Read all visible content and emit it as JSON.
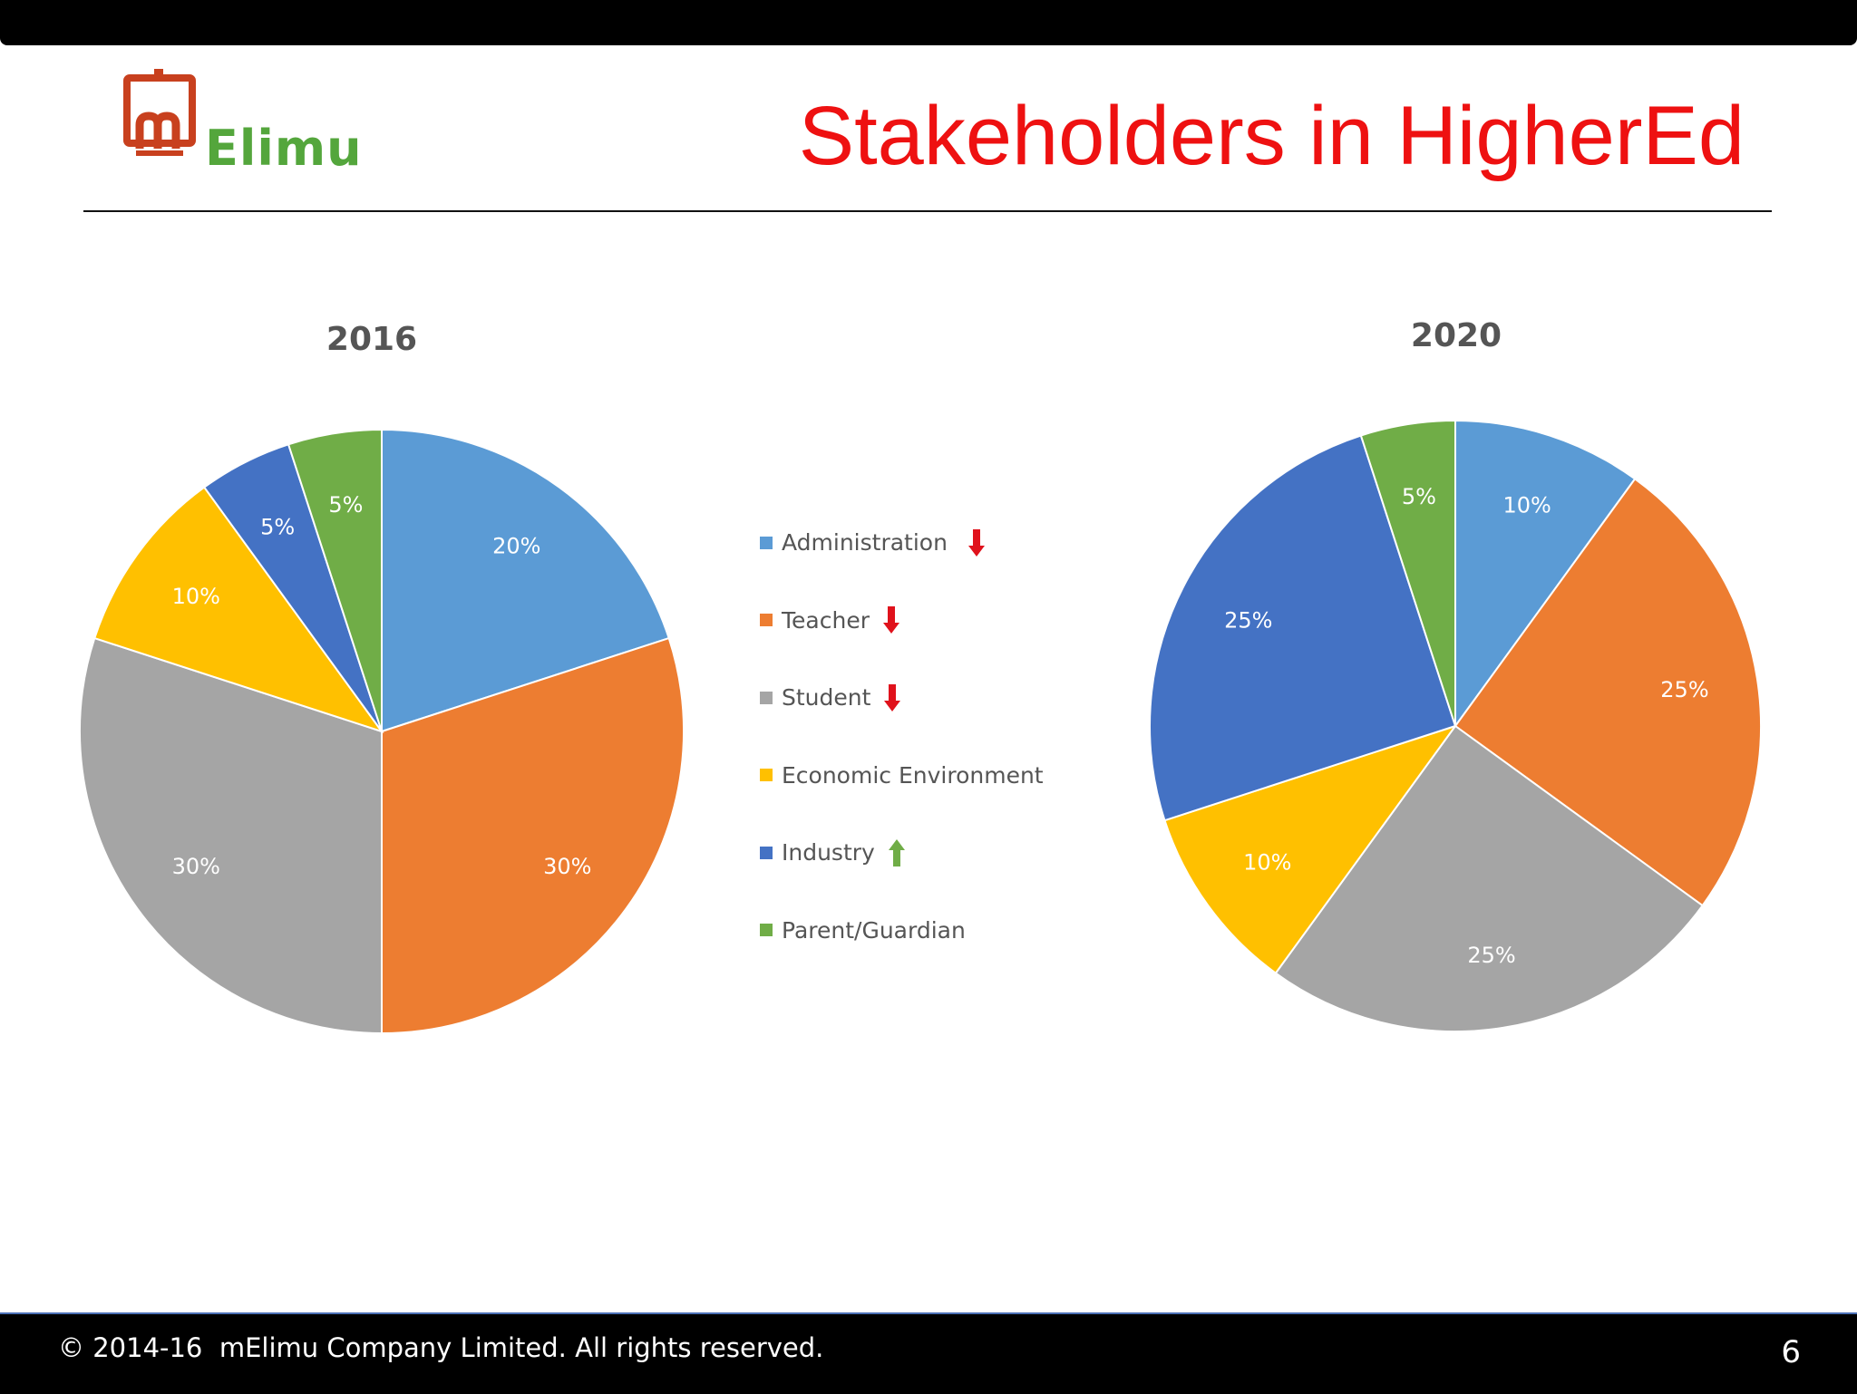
{
  "slide": {
    "logo_text": "Elimu",
    "title": "Stakeholders in HigherEd",
    "footer_text": "© 2014-16  mElimu Company Limited. All rights reserved.",
    "page_number": "6"
  },
  "colors": {
    "Administration": "#5b9bd5",
    "Teacher": "#ed7d31",
    "Student": "#a5a5a5",
    "Economic Environment": "#ffc000",
    "Industry": "#4472c4",
    "Parent/Guardian": "#70ad47",
    "title_red": "#ee1111",
    "arrow_down": "#e0121c",
    "arrow_up": "#70ad47"
  },
  "legend": [
    {
      "label": "Administration",
      "trend": "down"
    },
    {
      "label": "Teacher",
      "trend": "down"
    },
    {
      "label": "Student",
      "trend": "down"
    },
    {
      "label": "Economic Environment",
      "trend": "none"
    },
    {
      "label": "Industry",
      "trend": "up"
    },
    {
      "label": "Parent/Guardian",
      "trend": "none"
    }
  ],
  "chart_data": [
    {
      "type": "pie",
      "title": "2016",
      "categories": [
        "Administration",
        "Teacher",
        "Student",
        "Economic Environment",
        "Industry",
        "Parent/Guardian"
      ],
      "values": [
        20,
        30,
        30,
        10,
        5,
        5
      ],
      "labels": [
        "20%",
        "30%",
        "30%",
        "10%",
        "5%",
        "5%"
      ],
      "legend": "between charts"
    },
    {
      "type": "pie",
      "title": "2020",
      "categories": [
        "Administration",
        "Teacher",
        "Student",
        "Economic Environment",
        "Industry",
        "Parent/Guardian"
      ],
      "values": [
        10,
        25,
        25,
        10,
        25,
        5
      ],
      "labels": [
        "10%",
        "25%",
        "25%",
        "10%",
        "25%",
        "5%"
      ],
      "legend": "between charts"
    }
  ]
}
